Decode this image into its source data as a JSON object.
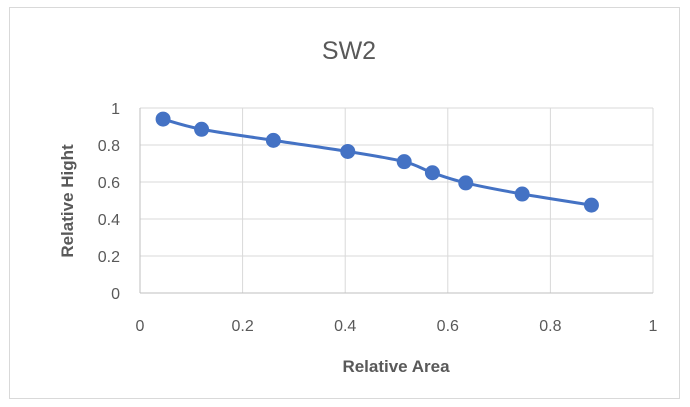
{
  "chart_data": {
    "type": "scatter",
    "title": "SW2",
    "xlabel": "Relative Area",
    "ylabel": "Relative Hight",
    "xlim": [
      0,
      1
    ],
    "ylim": [
      0,
      1
    ],
    "x_ticks": [
      "0",
      "0.2",
      "0.4",
      "0.6",
      "0.8",
      "1"
    ],
    "y_ticks": [
      "0",
      "0.2",
      "0.4",
      "0.6",
      "0.8",
      "1"
    ],
    "grid": true,
    "legend": "none",
    "series": [
      {
        "color": "#4472c4",
        "line": "smooth",
        "marker": "circle",
        "x": [
          0.045,
          0.12,
          0.26,
          0.405,
          0.515,
          0.57,
          0.635,
          0.745,
          0.88
        ],
        "y": [
          0.94,
          0.885,
          0.825,
          0.765,
          0.71,
          0.65,
          0.595,
          0.535,
          0.475
        ]
      }
    ]
  }
}
